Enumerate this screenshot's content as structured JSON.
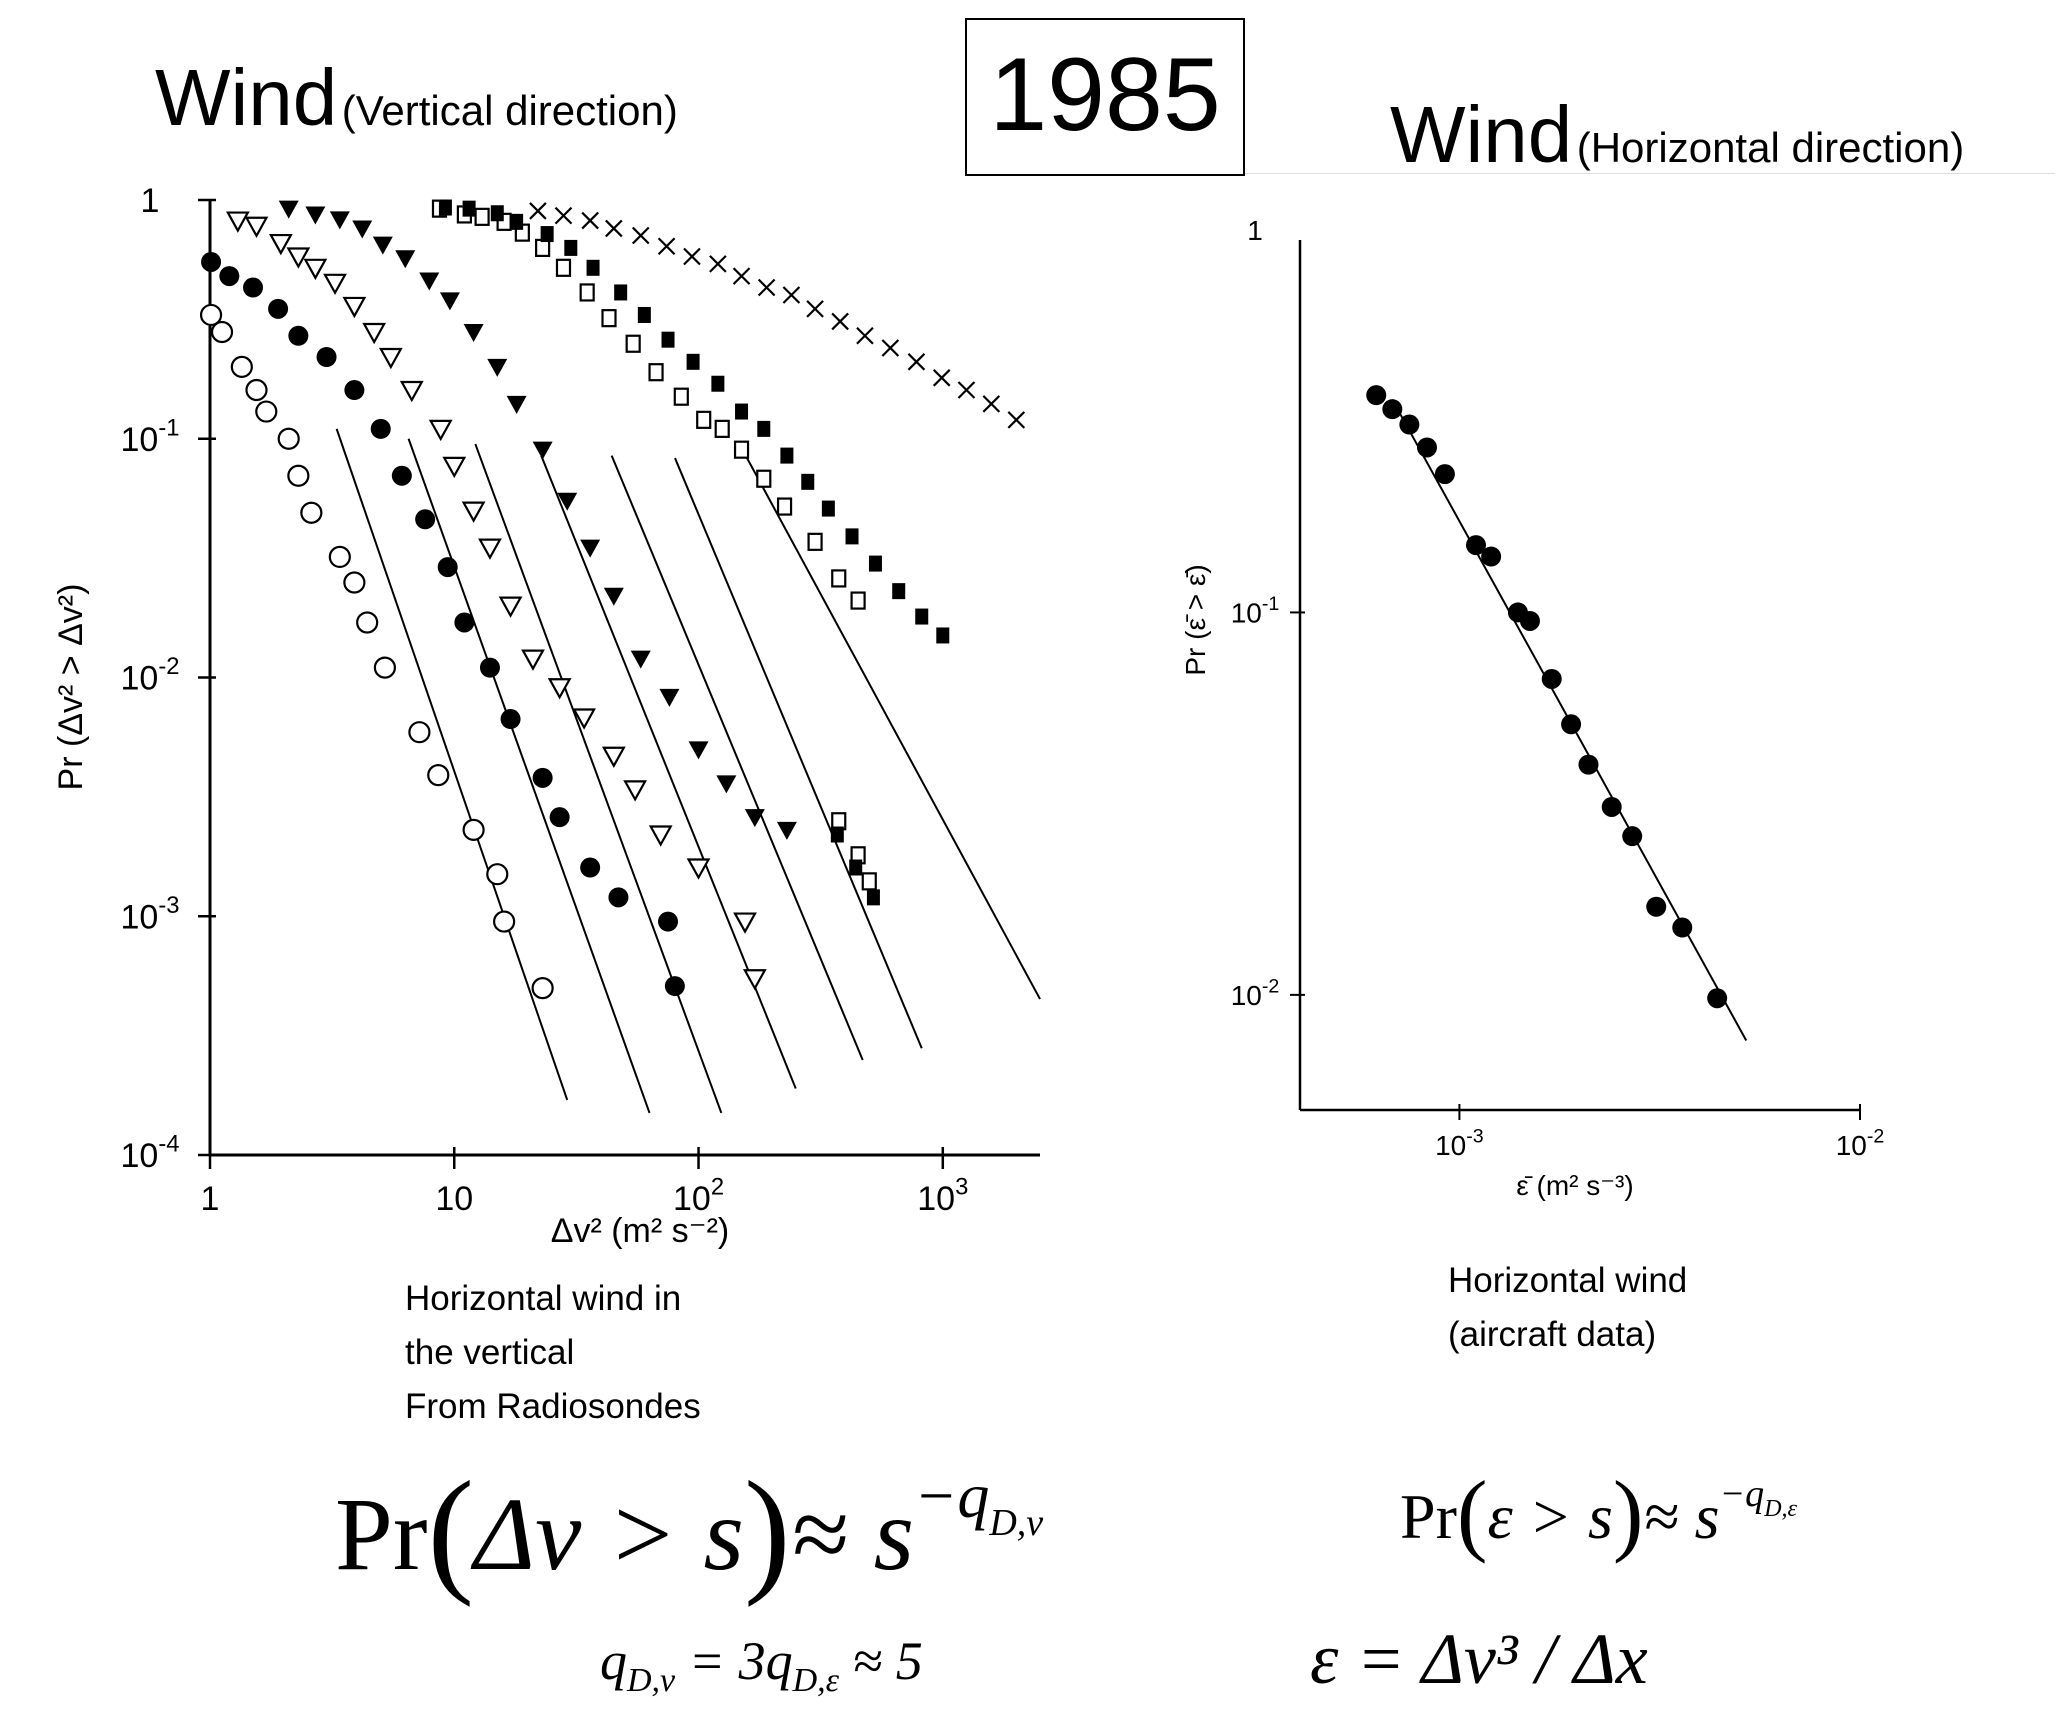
{
  "header": {
    "year": "1985",
    "left_title": "Wind",
    "left_subtitle": "(Vertical direction)",
    "right_title": "Wind",
    "right_subtitle": "(Horizontal direction)"
  },
  "captions": {
    "left": [
      "Horizontal wind in",
      "the vertical",
      "From Radiosondes"
    ],
    "right": [
      "Horizontal wind",
      "(aircraft data)"
    ]
  },
  "formulas": {
    "pr_dv": {
      "lhs": "Pr",
      "arg": "Δv > s",
      "approx": "≈ s",
      "exp": "−q",
      "sub": "D,v"
    },
    "pr_eps": {
      "lhs": "Pr",
      "arg": "ε > s",
      "approx": "≈ s",
      "exp": "−q",
      "sub": "D,ε"
    },
    "q_relation": "q_{D,v} = 3q_{D,ε} ≈ 5",
    "eps_def": "ε = Δv³ / Δx"
  },
  "chart_data": [
    {
      "type": "scatter",
      "xscale": "log",
      "yscale": "log",
      "xlim": [
        1,
        2500
      ],
      "ylim": [
        0.0001,
        1
      ],
      "xlabel": "Δv² (m² s⁻²)",
      "ylabel": "Pr (Δv² > Δv²)",
      "xticks": [
        "1",
        "10",
        "10²",
        "10³"
      ],
      "yticks": [
        "1",
        "10⁻¹",
        "10⁻²",
        "10⁻³",
        "10⁻⁴"
      ],
      "series": [
        {
          "marker": "open-circle",
          "points": [
            [
              1.01,
              0.33
            ],
            [
              1.12,
              0.28
            ],
            [
              1.35,
              0.2
            ],
            [
              1.55,
              0.16
            ],
            [
              1.7,
              0.13
            ],
            [
              2.1,
              0.1
            ],
            [
              2.3,
              0.07
            ],
            [
              2.6,
              0.049
            ],
            [
              3.4,
              0.032
            ],
            [
              3.9,
              0.025
            ],
            [
              4.4,
              0.017
            ],
            [
              5.2,
              0.011
            ],
            [
              7.2,
              0.0059
            ],
            [
              8.6,
              0.0039
            ],
            [
              12,
              0.0023
            ],
            [
              15,
              0.0015
            ],
            [
              16,
              0.00095
            ],
            [
              23,
              0.0005
            ]
          ],
          "fit": [
            [
              3.3,
              0.11
            ],
            [
              29,
              0.00017
            ]
          ]
        },
        {
          "marker": "filled-circle",
          "points": [
            [
              1.01,
              0.55
            ],
            [
              1.2,
              0.48
            ],
            [
              1.5,
              0.43
            ],
            [
              1.9,
              0.35
            ],
            [
              2.3,
              0.27
            ],
            [
              3,
              0.22
            ],
            [
              3.9,
              0.16
            ],
            [
              5,
              0.11
            ],
            [
              6.1,
              0.07
            ],
            [
              7.6,
              0.046
            ],
            [
              9.4,
              0.029
            ],
            [
              11,
              0.017
            ],
            [
              14,
              0.011
            ],
            [
              17,
              0.0067
            ],
            [
              23,
              0.0038
            ],
            [
              27,
              0.0026
            ],
            [
              36,
              0.0016
            ],
            [
              47,
              0.0012
            ],
            [
              75,
              0.00095
            ],
            [
              80,
              0.00051
            ]
          ],
          "fit": [
            [
              6.5,
              0.1
            ],
            [
              63,
              0.00015
            ]
          ]
        },
        {
          "marker": "open-triangle-down",
          "points": [
            [
              1.3,
              0.82
            ],
            [
              1.55,
              0.78
            ],
            [
              1.95,
              0.66
            ],
            [
              2.3,
              0.58
            ],
            [
              2.7,
              0.52
            ],
            [
              3.25,
              0.45
            ],
            [
              3.9,
              0.36
            ],
            [
              4.7,
              0.28
            ],
            [
              5.5,
              0.22
            ],
            [
              6.7,
              0.16
            ],
            [
              8.8,
              0.11
            ],
            [
              10,
              0.077
            ],
            [
              12,
              0.05
            ],
            [
              14,
              0.035
            ],
            [
              17,
              0.02
            ],
            [
              21,
              0.012
            ],
            [
              27,
              0.0091
            ],
            [
              34,
              0.0068
            ],
            [
              45,
              0.0047
            ],
            [
              55,
              0.0034
            ],
            [
              70,
              0.0022
            ],
            [
              100,
              0.0016
            ],
            [
              155,
              0.00095
            ],
            [
              170,
              0.00055
            ]
          ],
          "fit": [
            [
              12.2,
              0.095
            ],
            [
              124,
              0.00015
            ]
          ]
        },
        {
          "marker": "filled-triangle-down",
          "points": [
            [
              2.1,
              0.92
            ],
            [
              2.7,
              0.87
            ],
            [
              3.4,
              0.83
            ],
            [
              4.2,
              0.76
            ],
            [
              5.1,
              0.65
            ],
            [
              6.3,
              0.57
            ],
            [
              7.9,
              0.46
            ],
            [
              9.6,
              0.38
            ],
            [
              12,
              0.28
            ],
            [
              15,
              0.2
            ],
            [
              18,
              0.14
            ],
            [
              23,
              0.09
            ],
            [
              29,
              0.055
            ],
            [
              36,
              0.035
            ],
            [
              45,
              0.022
            ],
            [
              58,
              0.012
            ],
            [
              76,
              0.0083
            ],
            [
              100,
              0.005
            ],
            [
              130,
              0.0036
            ],
            [
              170,
              0.0026
            ],
            [
              230,
              0.0023
            ]
          ],
          "fit": [
            [
              22.7,
              0.085
            ],
            [
              250,
              0.00019
            ]
          ]
        },
        {
          "marker": "open-square",
          "points": [
            [
              8.7,
              0.92
            ],
            [
              11,
              0.87
            ],
            [
              13,
              0.85
            ],
            [
              16,
              0.81
            ],
            [
              19,
              0.73
            ],
            [
              23,
              0.63
            ],
            [
              28,
              0.52
            ],
            [
              35,
              0.41
            ],
            [
              43,
              0.32
            ],
            [
              54,
              0.25
            ],
            [
              67,
              0.19
            ],
            [
              85,
              0.15
            ],
            [
              105,
              0.12
            ],
            [
              125,
              0.11
            ],
            [
              150,
              0.09
            ],
            [
              185,
              0.068
            ],
            [
              225,
              0.052
            ],
            [
              300,
              0.037
            ],
            [
              375,
              0.026
            ],
            [
              450,
              0.021
            ],
            [
              375,
              0.0025
            ],
            [
              450,
              0.0018
            ],
            [
              500,
              0.0014
            ]
          ],
          "fit": [
            [
              44.1,
              0.085
            ],
            [
              470,
              0.00025
            ]
          ]
        },
        {
          "marker": "filled-square",
          "points": [
            [
              9.2,
              0.93
            ],
            [
              11.5,
              0.92
            ],
            [
              15,
              0.88
            ],
            [
              18,
              0.81
            ],
            [
              24,
              0.72
            ],
            [
              30,
              0.63
            ],
            [
              37,
              0.52
            ],
            [
              48,
              0.41
            ],
            [
              60,
              0.33
            ],
            [
              75,
              0.26
            ],
            [
              95,
              0.21
            ],
            [
              120,
              0.17
            ],
            [
              150,
              0.13
            ],
            [
              185,
              0.11
            ],
            [
              230,
              0.085
            ],
            [
              280,
              0.066
            ],
            [
              340,
              0.051
            ],
            [
              425,
              0.039
            ],
            [
              530,
              0.03
            ],
            [
              660,
              0.023
            ],
            [
              820,
              0.018
            ],
            [
              1000,
              0.015
            ],
            [
              370,
              0.0022
            ],
            [
              440,
              0.0016
            ],
            [
              520,
              0.0012
            ]
          ],
          "fit": [
            [
              80.1,
              0.083
            ],
            [
              820,
              0.00028
            ]
          ]
        },
        {
          "marker": "cross",
          "points": [
            [
              22,
              0.9
            ],
            [
              28,
              0.86
            ],
            [
              36,
              0.82
            ],
            [
              45,
              0.76
            ],
            [
              58,
              0.71
            ],
            [
              74,
              0.64
            ],
            [
              94,
              0.58
            ],
            [
              120,
              0.54
            ],
            [
              150,
              0.48
            ],
            [
              190,
              0.43
            ],
            [
              240,
              0.4
            ],
            [
              300,
              0.35
            ],
            [
              380,
              0.31
            ],
            [
              480,
              0.27
            ],
            [
              610,
              0.24
            ],
            [
              780,
              0.21
            ],
            [
              990,
              0.18
            ],
            [
              1250,
              0.16
            ],
            [
              1580,
              0.14
            ],
            [
              2000,
              0.12
            ]
          ],
          "fit": [
            [
              155,
              0.086
            ],
            [
              2500,
              0.00045
            ]
          ]
        }
      ]
    },
    {
      "type": "scatter",
      "xscale": "log",
      "yscale": "log",
      "xlim": [
        0.0004,
        0.01
      ],
      "ylim": [
        0.005,
        1
      ],
      "xlabel": "ε̄ (m² s⁻³)",
      "ylabel": "Pr (ε̄ > ε̄)",
      "xticks": [
        "10⁻³",
        "10⁻²"
      ],
      "yticks": [
        "1",
        "10⁻¹",
        "10⁻²"
      ],
      "series": [
        {
          "marker": "filled-circle",
          "points": [
            [
              0.00062,
              0.37
            ],
            [
              0.00068,
              0.34
            ],
            [
              0.00075,
              0.31
            ],
            [
              0.00083,
              0.27
            ],
            [
              0.00092,
              0.23
            ],
            [
              0.0011,
              0.15
            ],
            [
              0.0012,
              0.14
            ],
            [
              0.0014,
              0.1
            ],
            [
              0.0015,
              0.095
            ],
            [
              0.0017,
              0.067
            ],
            [
              0.0019,
              0.051
            ],
            [
              0.0021,
              0.04
            ],
            [
              0.0024,
              0.031
            ],
            [
              0.0027,
              0.026
            ],
            [
              0.0031,
              0.017
            ],
            [
              0.0036,
              0.015
            ],
            [
              0.0044,
              0.0098
            ]
          ],
          "fit": [
            [
              0.00068,
              0.36
            ],
            [
              0.0052,
              0.0076
            ]
          ]
        }
      ]
    }
  ]
}
